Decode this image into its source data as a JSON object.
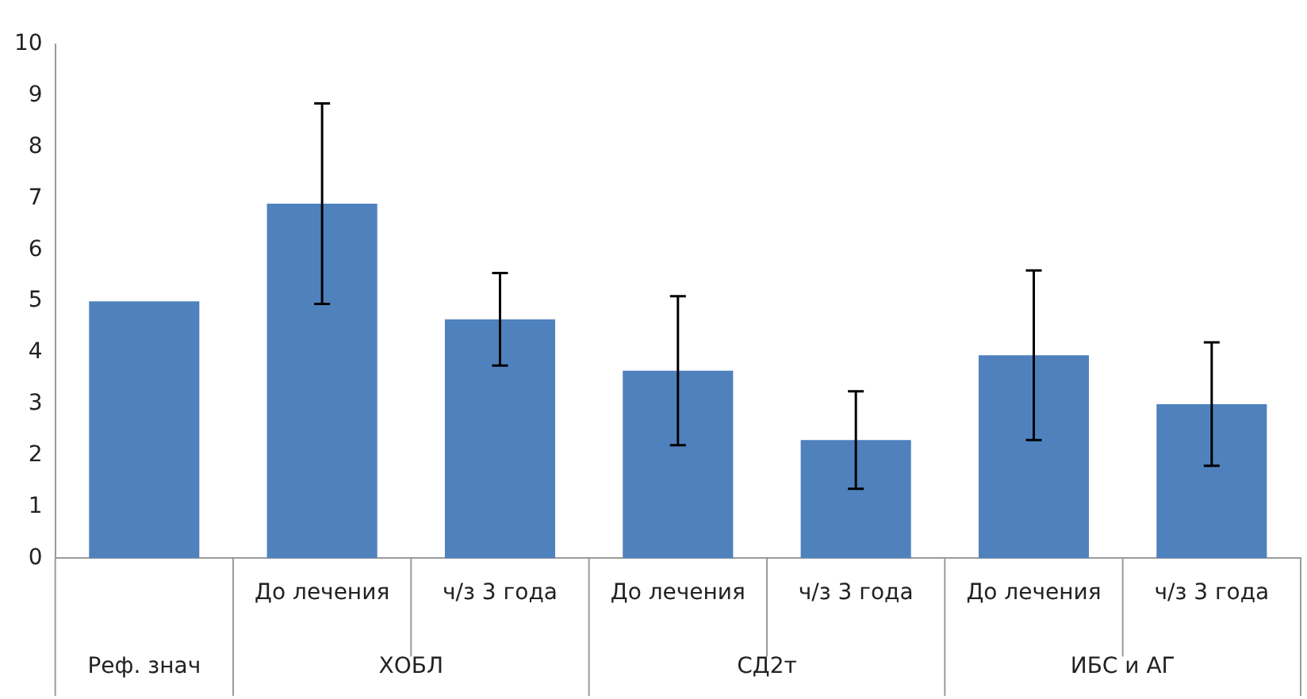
{
  "chart_data": {
    "type": "bar",
    "categories": [
      null,
      "До лечения",
      "ч/з 3 года",
      "До лечения",
      "ч/з 3 года",
      "До лечения",
      "ч/з 3 года"
    ],
    "values": [
      5.0,
      6.9,
      4.65,
      3.65,
      2.3,
      3.95,
      3.0
    ],
    "errors": [
      null,
      1.95,
      0.9,
      1.45,
      0.95,
      1.65,
      1.2
    ],
    "color": "#4f81bd",
    "ylim": [
      0,
      10
    ],
    "yticks": [
      0,
      1,
      2,
      3,
      4,
      5,
      6,
      7,
      8,
      9,
      10
    ],
    "grid": false,
    "legend": false,
    "annotations": [
      "Реф. знач",
      "ХОБЛ",
      "СД2т",
      "ИБС и АГ"
    ]
  }
}
